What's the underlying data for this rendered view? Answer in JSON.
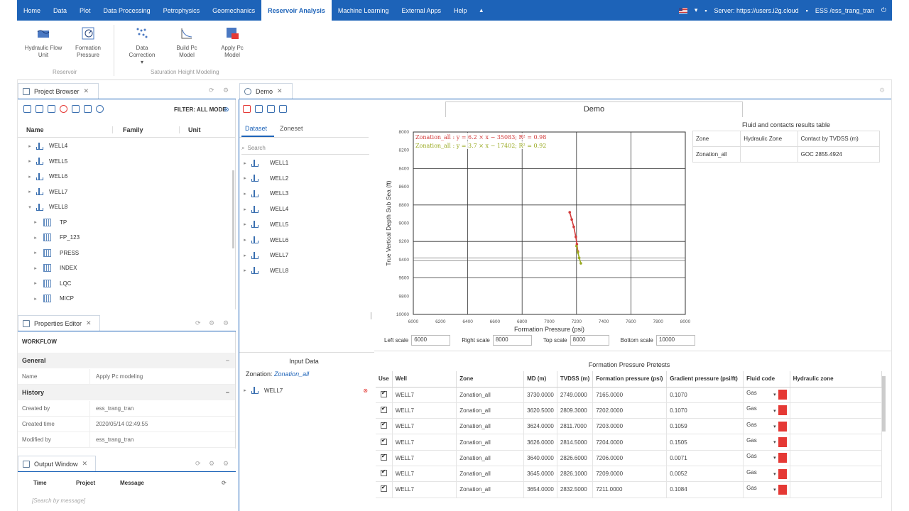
{
  "menubar": {
    "items": [
      "Home",
      "Data",
      "Plot",
      "Data Processing",
      "Petrophysics",
      "Geomechanics",
      "Reservoir Analysis",
      "Machine Learning",
      "External Apps",
      "Help"
    ],
    "active": "Reservoir Analysis",
    "server": "Server: https://users.i2g.cloud",
    "user": "ESS /ess_trang_tran"
  },
  "ribbon": {
    "buttons": [
      {
        "label": "Hydraulic Flow Unit",
        "icon": "hydraulic-flow-icon"
      },
      {
        "label": "Formation Pressure",
        "icon": "formation-pressure-icon"
      },
      {
        "label": "Data Correction",
        "icon": "data-correction-icon"
      },
      {
        "label": "Build Pc Model",
        "icon": "build-pc-model-icon"
      },
      {
        "label": "Apply Pc Model",
        "icon": "apply-pc-model-icon"
      }
    ],
    "groups": [
      "Reservoir",
      "Saturation Height Modeling"
    ]
  },
  "project_browser": {
    "title": "Project Browser",
    "filter": "FILTER: ALL MODE",
    "columns": [
      "Name",
      "Family",
      "Unit"
    ],
    "wells": [
      "WELL4",
      "WELL5",
      "WELL6",
      "WELL7",
      "WELL8"
    ],
    "children": [
      "TP",
      "FP_123",
      "PRESS",
      "INDEX",
      "LQC",
      "MICP"
    ]
  },
  "properties_editor": {
    "title": "Properties Editor",
    "heading": "WORKFLOW",
    "general_label": "General",
    "name_key": "Name",
    "name_val": "Apply Pc modeling",
    "history_label": "History",
    "created_by_key": "Created by",
    "created_by_val": "ess_trang_tran",
    "created_time_key": "Created time",
    "created_time_val": "2020/05/14 02:49:55",
    "modified_by_key": "Modified by",
    "modified_by_val": "ess_trang_tran"
  },
  "output_window": {
    "title": "Output Window",
    "columns": [
      "Time",
      "Project",
      "Message"
    ],
    "search_placeholder": "[Search by message]"
  },
  "demo": {
    "tab": "Demo",
    "title": "Demo",
    "subtabs": [
      "Dataset",
      "Zoneset"
    ],
    "search_placeholder": "Search",
    "wells": [
      "WELL1",
      "WELL2",
      "WELL3",
      "WELL4",
      "WELL5",
      "WELL6",
      "WELL7",
      "WELL8"
    ],
    "input_data_title": "Input Data",
    "zonation_label": "Zonation:",
    "zonation_value": "Zonation_all",
    "input_well": "WELL7"
  },
  "results_table": {
    "title": "Fluid and contacts results table",
    "headers": [
      "Zone",
      "Hydraulic Zone",
      "Contact by TVDSS (m)"
    ],
    "rows": [
      [
        "Zonation_all",
        "",
        "GOC 2855.4924"
      ]
    ]
  },
  "scales": {
    "left_label": "Left scale",
    "left_value": "6000",
    "right_label": "Right scale",
    "right_value": "8000",
    "top_label": "Top scale",
    "top_value": "8000",
    "bottom_label": "Bottom scale",
    "bottom_value": "10000"
  },
  "chart_data": {
    "type": "scatter",
    "xlabel": "Formation Pressure (psi)",
    "ylabel": "True Vertical Depth Sub Sea (ft)",
    "xlim": [
      6000,
      8000
    ],
    "ylim": [
      8000,
      10000
    ],
    "x_ticks": [
      6000,
      6200,
      6400,
      6600,
      6800,
      7000,
      7200,
      7400,
      7600,
      7800,
      8000
    ],
    "y_ticks": [
      8000,
      8200,
      8400,
      8600,
      8800,
      9000,
      9200,
      9400,
      9600,
      9800,
      10000
    ],
    "y_inverted": true,
    "grid": true,
    "annotations": [
      {
        "text": "Zonation_all : y = 6.2 × x − 35083; R² = 0.98",
        "color": "#d23a3a"
      },
      {
        "text": "Zonation_all : y = 3.7 × x − 17402; R² = 0.92",
        "color": "#9aaa22"
      }
    ],
    "series": [
      {
        "color": "#d23a3a",
        "x": [
          7150,
          7165,
          7180,
          7195,
          7203,
          7210
        ],
        "y": [
          8880,
          8960,
          9040,
          9150,
          9230,
          9310
        ]
      },
      {
        "color": "#9aaa22",
        "x": [
          7200,
          7210,
          7220,
          7232
        ],
        "y": [
          9250,
          9320,
          9380,
          9440
        ]
      }
    ],
    "hlines": [
      9380,
      9410
    ]
  },
  "pretests": {
    "title": "Formation Pressure Pretests",
    "headers": [
      "Use",
      "Well",
      "Zone",
      "MD (m)",
      "TVDSS (m)",
      "Formation pressure (psi)",
      "Gradient pressure (psi/ft)",
      "Fluid code",
      "Hydraulic zone"
    ],
    "rows": [
      [
        "WELL7",
        "Zonation_all",
        "3730.0000",
        "2749.0000",
        "7165.0000",
        "0.1070",
        "Gas"
      ],
      [
        "WELL7",
        "Zonation_all",
        "3620.5000",
        "2809.3000",
        "7202.0000",
        "0.1070",
        "Gas"
      ],
      [
        "WELL7",
        "Zonation_all",
        "3624.0000",
        "2811.7000",
        "7203.0000",
        "0.1059",
        "Gas"
      ],
      [
        "WELL7",
        "Zonation_all",
        "3626.0000",
        "2814.5000",
        "7204.0000",
        "0.1505",
        "Gas"
      ],
      [
        "WELL7",
        "Zonation_all",
        "3640.0000",
        "2826.6000",
        "7206.0000",
        "0.0071",
        "Gas"
      ],
      [
        "WELL7",
        "Zonation_all",
        "3645.0000",
        "2826.1000",
        "7209.0000",
        "0.0052",
        "Gas"
      ],
      [
        "WELL7",
        "Zonation_all",
        "3654.0000",
        "2832.5000",
        "7211.0000",
        "0.1084",
        "Gas"
      ]
    ]
  }
}
